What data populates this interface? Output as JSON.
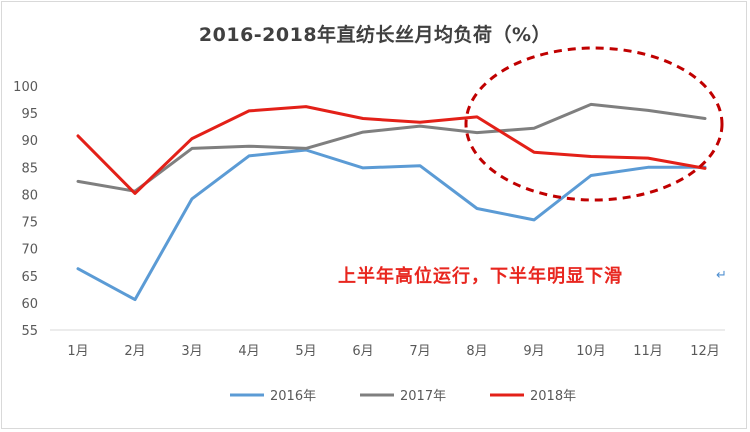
{
  "chart_data": {
    "type": "line",
    "title": "2016-2018年直纺长丝月均负荷（%）",
    "categories": [
      "1月",
      "2月",
      "3月",
      "4月",
      "5月",
      "6月",
      "7月",
      "8月",
      "9月",
      "10月",
      "11月",
      "12月"
    ],
    "ylim": [
      55,
      100
    ],
    "yticks": [
      55,
      60,
      65,
      70,
      75,
      80,
      85,
      90,
      95,
      100
    ],
    "grid": false,
    "legend_position": "bottom",
    "series": [
      {
        "name": "2016年",
        "color": "#5b9bd5",
        "values": [
          66.3,
          60.6,
          79.2,
          87.1,
          88.2,
          84.9,
          85.3,
          77.4,
          75.3,
          83.5,
          85.0,
          85.0
        ]
      },
      {
        "name": "2017年",
        "color": "#7f7f7f",
        "values": [
          82.4,
          80.6,
          88.5,
          88.9,
          88.5,
          91.5,
          92.6,
          91.4,
          92.2,
          96.6,
          95.5,
          94.0
        ]
      },
      {
        "name": "2018年",
        "color": "#e32018",
        "values": [
          90.8,
          80.2,
          90.3,
          95.4,
          96.2,
          94.0,
          93.3,
          94.3,
          87.8,
          87.0,
          86.7,
          84.8
        ]
      }
    ],
    "annotation": "上半年高位运行，下半年明显下滑",
    "annotation_mark": "↵",
    "highlight_ellipse_color": "#c00000"
  }
}
